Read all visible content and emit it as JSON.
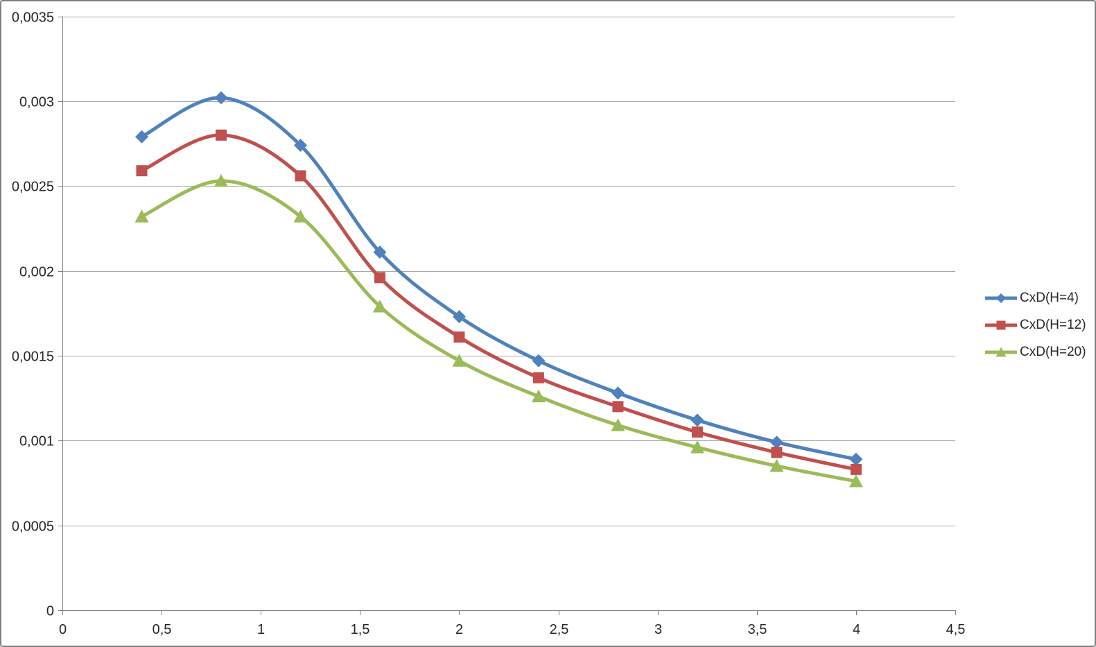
{
  "chart_data": {
    "type": "line",
    "title": "",
    "xlabel": "",
    "ylabel": "",
    "xlim": [
      0,
      4.5
    ],
    "ylim": [
      0,
      0.0035
    ],
    "grid": "horizontal",
    "legend_position": "right",
    "decimal_separator": ",",
    "line_style": "smooth",
    "x": [
      0.4,
      0.8,
      1.2,
      1.6,
      2,
      2.4,
      2.8,
      3.2,
      3.6,
      4
    ],
    "series": [
      {
        "name": "CxD(H=4)",
        "color": "#4F81BD",
        "marker": "diamond",
        "values": [
          0.00279,
          0.00302,
          0.00274,
          0.00211,
          0.00173,
          0.00147,
          0.00128,
          0.00112,
          0.00099,
          0.00089
        ]
      },
      {
        "name": "CxD(H=12)",
        "color": "#C0504D",
        "marker": "square",
        "values": [
          0.00259,
          0.0028,
          0.00256,
          0.00196,
          0.00161,
          0.00137,
          0.0012,
          0.00105,
          0.00093,
          0.00083
        ]
      },
      {
        "name": "CxD(H=20)",
        "color": "#9BBB59",
        "marker": "triangle",
        "values": [
          0.00232,
          0.00253,
          0.00232,
          0.00179,
          0.00147,
          0.00126,
          0.00109,
          0.00096,
          0.00085,
          0.00076
        ]
      }
    ],
    "x_ticks": [
      {
        "value": 0,
        "label": "0"
      },
      {
        "value": 0.5,
        "label": "0,5"
      },
      {
        "value": 1,
        "label": "1"
      },
      {
        "value": 1.5,
        "label": "1,5"
      },
      {
        "value": 2,
        "label": "2"
      },
      {
        "value": 2.5,
        "label": "2,5"
      },
      {
        "value": 3,
        "label": "3"
      },
      {
        "value": 3.5,
        "label": "3,5"
      },
      {
        "value": 4,
        "label": "4"
      },
      {
        "value": 4.5,
        "label": "4,5"
      }
    ],
    "y_ticks": [
      {
        "value": 0,
        "label": "0"
      },
      {
        "value": 0.0005,
        "label": "0,0005"
      },
      {
        "value": 0.001,
        "label": "0,001"
      },
      {
        "value": 0.0015,
        "label": "0,0015"
      },
      {
        "value": 0.002,
        "label": "0,002"
      },
      {
        "value": 0.0025,
        "label": "0,0025"
      },
      {
        "value": 0.003,
        "label": "0,003"
      },
      {
        "value": 0.0035,
        "label": "0,0035"
      }
    ]
  },
  "colors": {
    "background": "#FFFFFF",
    "gridline": "#A6A6A6",
    "axis": "#808080",
    "tick": "#808080",
    "text": "#262626",
    "frame_border": "#7F7F7F"
  }
}
